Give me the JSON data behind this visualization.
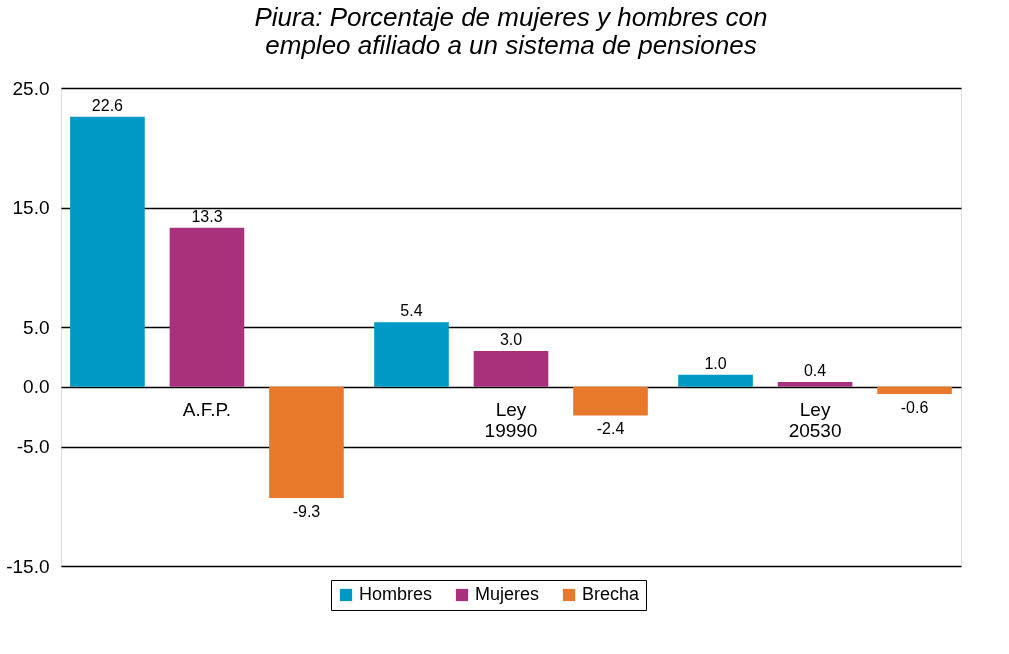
{
  "chart_data": {
    "type": "bar",
    "title": "Piura: Porcentaje de mujeres y hombres con empleo afiliado a un sistema de pensiones",
    "categories": [
      "A.F.P.",
      "Ley 19990",
      "Ley 20530"
    ],
    "series": [
      {
        "name": "Hombres",
        "color": "#0099c6",
        "values": [
          22.6,
          5.4,
          1.0
        ]
      },
      {
        "name": "Mujeres",
        "color": "#a9307a",
        "values": [
          13.3,
          3.0,
          0.4
        ]
      },
      {
        "name": "Brecha",
        "color": "#e8792a",
        "values": [
          -9.3,
          -2.4,
          -0.6
        ]
      }
    ],
    "ylim": [
      -15,
      25
    ],
    "yticks": [
      {
        "value": 25,
        "label": "25.0"
      },
      {
        "value": 15,
        "label": "15.0"
      },
      {
        "value": 5,
        "label": "5.0"
      },
      {
        "value": 0,
        "label": "0.0"
      },
      {
        "value": -5,
        "label": "-5.0"
      },
      {
        "value": -15,
        "label": "-15.0"
      }
    ],
    "value_labels": [
      [
        "22.6",
        "5.4",
        "1.0"
      ],
      [
        "13.3",
        "3.0",
        "0.4"
      ],
      [
        "-9.3",
        "-2.4",
        "-0.6"
      ]
    ],
    "grid": "y",
    "legend": "bottom"
  }
}
